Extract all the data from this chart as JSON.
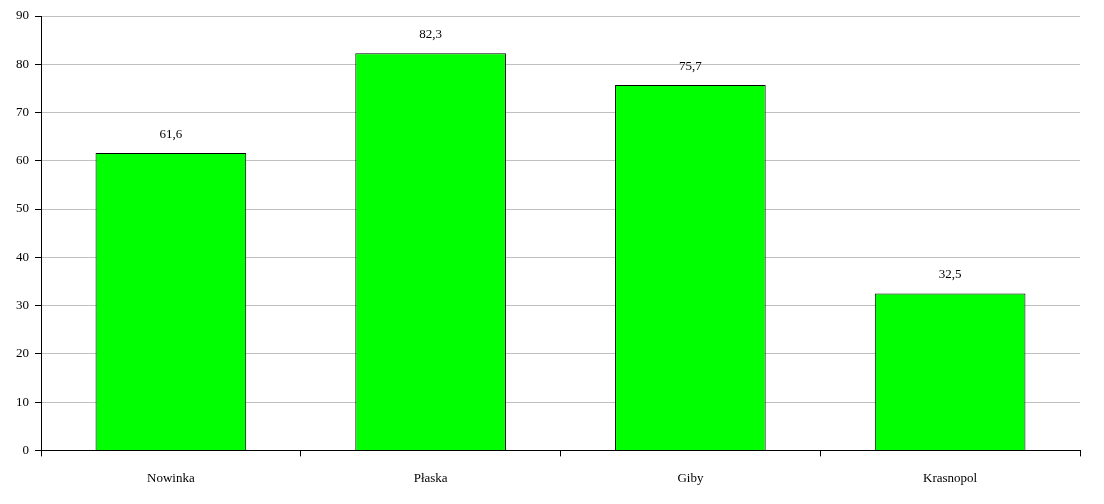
{
  "chart_data": {
    "type": "bar",
    "categories": [
      "Nowinka",
      "Płaska",
      "Giby",
      "Krasnopol"
    ],
    "values": [
      61.6,
      82.3,
      75.7,
      32.5
    ],
    "value_labels": [
      "61,6",
      "82,3",
      "75,7",
      "32,5"
    ],
    "color": "#00ff00",
    "ylim": [
      0,
      90
    ],
    "yticks": [
      0,
      10,
      20,
      30,
      40,
      50,
      60,
      70,
      80,
      90
    ],
    "grid": "y"
  }
}
